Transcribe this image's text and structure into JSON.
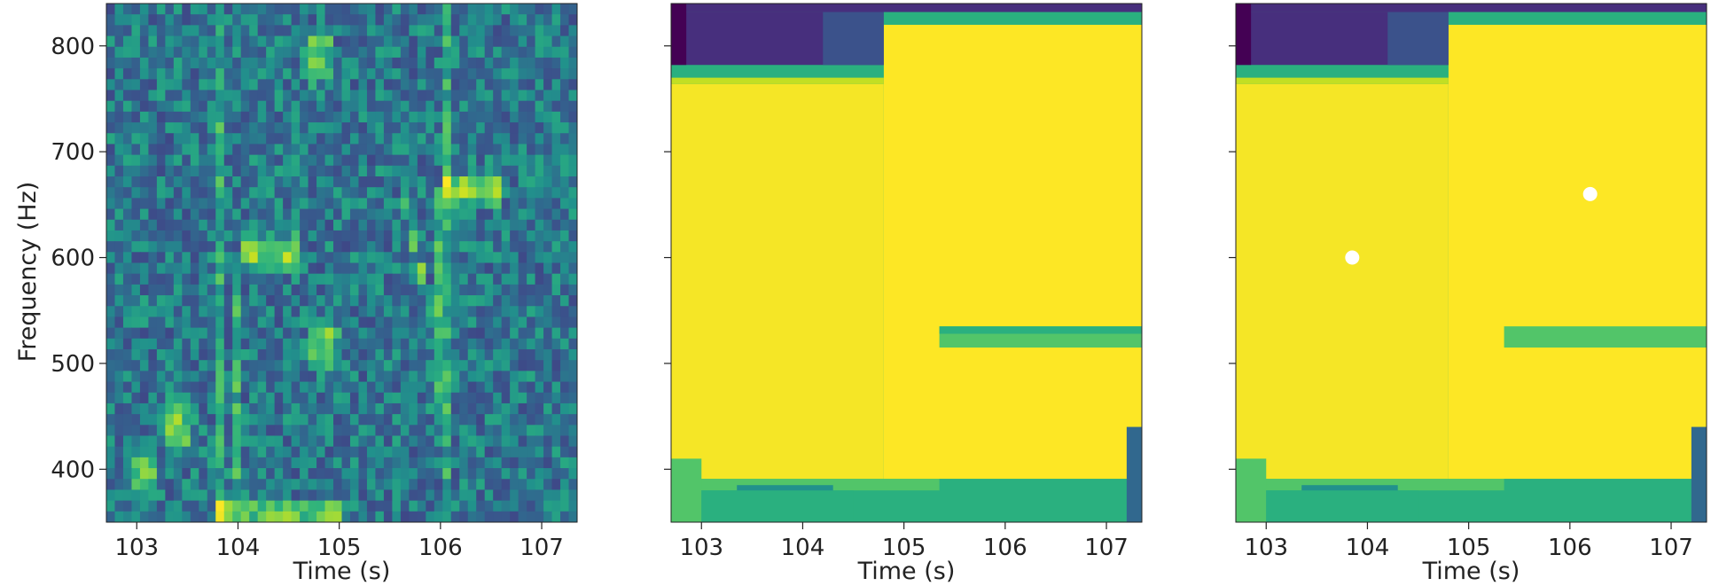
{
  "colormap": {
    "dark": "#440154",
    "purple": "#472f7d",
    "indigo": "#3b528b",
    "blue": "#31688e",
    "teal": "#21918c",
    "seagreen": "#2ab07f",
    "green": "#52c569",
    "lime": "#86d549",
    "yellowgreen": "#c2df23",
    "yellow": "#f5e626",
    "yellow_bright": "#fde725",
    "white": "#ffffff"
  },
  "chart_data": [
    {
      "type": "heatmap",
      "title": "",
      "xlabel": "Time (s)",
      "ylabel": "Frequency (Hz)",
      "xlim": [
        102.7,
        107.35
      ],
      "ylim": [
        350,
        840
      ],
      "xticks": [
        103,
        104,
        105,
        106,
        107
      ],
      "yticks": [
        400,
        500,
        600,
        700,
        800
      ],
      "description": "noisy spectrogram",
      "features": [
        {
          "label": "tone",
          "x": [
            104.0,
            104.6
          ],
          "y": 605
        },
        {
          "label": "tone",
          "x": [
            106.0,
            106.6
          ],
          "y": 665
        },
        {
          "label": "sweep",
          "x": [
            105.6,
            105.9
          ],
          "y": 670
        },
        {
          "label": "blob",
          "x": 104.85,
          "y": 520
        },
        {
          "label": "blob",
          "x": 104.8,
          "y": 790
        },
        {
          "label": "blob",
          "x": 103.4,
          "y": 440
        },
        {
          "label": "blob",
          "x": 103.05,
          "y": 395
        },
        {
          "label": "vertical_line",
          "x": 103.8
        },
        {
          "label": "vertical_line",
          "x": 106.05
        },
        {
          "label": "band",
          "x": [
            103.8,
            105.0
          ],
          "y": 360
        }
      ]
    },
    {
      "type": "heatmap",
      "title": "",
      "xlabel": "Time (s)",
      "xlim": [
        102.7,
        107.35
      ],
      "ylim": [
        350,
        840
      ],
      "xticks": [
        103,
        104,
        105,
        106,
        107
      ],
      "yticks": [
        400,
        500,
        600,
        700,
        800
      ],
      "regions": [
        {
          "x": [
            102.7,
            107.35
          ],
          "y": [
            350,
            840
          ],
          "color": "seagreen"
        },
        {
          "x": [
            102.7,
            105.35
          ],
          "y": [
            350,
            380
          ],
          "color": "seagreen"
        },
        {
          "x": [
            102.7,
            105.35
          ],
          "y": [
            380,
            391
          ],
          "color": "green"
        },
        {
          "x": [
            102.7,
            104.8
          ],
          "y": [
            391,
            764
          ],
          "color": "yellow"
        },
        {
          "x": [
            104.8,
            107.35
          ],
          "y": [
            391,
            820
          ],
          "color": "yellow_bright"
        },
        {
          "x": [
            102.7,
            104.8
          ],
          "y": [
            764,
            770
          ],
          "color": "yellowgreen"
        },
        {
          "x": [
            102.7,
            104.8
          ],
          "y": [
            770,
            782
          ],
          "color": "seagreen"
        },
        {
          "x": [
            102.7,
            104.8
          ],
          "y": [
            782,
            832
          ],
          "color": "purple"
        },
        {
          "x": [
            104.8,
            107.35
          ],
          "y": [
            820,
            832
          ],
          "color": "seagreen"
        },
        {
          "x": [
            102.7,
            107.35
          ],
          "y": [
            832,
            840
          ],
          "color": "purple"
        },
        {
          "x": [
            102.7,
            102.85
          ],
          "y": [
            782,
            840
          ],
          "color": "dark"
        },
        {
          "x": [
            104.2,
            104.8
          ],
          "y": [
            782,
            832
          ],
          "color": "indigo"
        },
        {
          "x": [
            105.35,
            107.35
          ],
          "y": [
            515,
            535
          ],
          "color": "green"
        },
        {
          "x": [
            105.35,
            107.35
          ],
          "y": [
            535,
            528
          ],
          "color": "seagreen"
        },
        {
          "x": [
            103.35,
            104.3
          ],
          "y": [
            385,
            340
          ],
          "color": "teal"
        },
        {
          "x": [
            102.7,
            103.0
          ],
          "y": [
            350,
            410
          ],
          "color": "green"
        },
        {
          "x": [
            103.0,
            104.5
          ],
          "y": [
            350,
            380
          ],
          "color": "seagreen"
        },
        {
          "x": [
            107.2,
            107.35
          ],
          "y": [
            350,
            440
          ],
          "color": "blue"
        }
      ]
    },
    {
      "type": "heatmap",
      "title": "",
      "xlabel": "Time (s)",
      "xlim": [
        102.7,
        107.35
      ],
      "ylim": [
        350,
        840
      ],
      "xticks": [
        103,
        104,
        105,
        106,
        107
      ],
      "yticks": [
        400,
        500,
        600,
        700,
        800
      ],
      "regions": [
        {
          "x": [
            102.7,
            107.35
          ],
          "y": [
            350,
            840
          ],
          "color": "seagreen"
        },
        {
          "x": [
            102.7,
            105.35
          ],
          "y": [
            350,
            380
          ],
          "color": "seagreen"
        },
        {
          "x": [
            102.7,
            105.35
          ],
          "y": [
            380,
            391
          ],
          "color": "green"
        },
        {
          "x": [
            102.7,
            104.8
          ],
          "y": [
            391,
            764
          ],
          "color": "yellow"
        },
        {
          "x": [
            104.8,
            107.35
          ],
          "y": [
            391,
            820
          ],
          "color": "yellow_bright"
        },
        {
          "x": [
            102.7,
            104.8
          ],
          "y": [
            764,
            770
          ],
          "color": "yellowgreen"
        },
        {
          "x": [
            102.7,
            104.8
          ],
          "y": [
            770,
            782
          ],
          "color": "seagreen"
        },
        {
          "x": [
            102.7,
            104.8
          ],
          "y": [
            782,
            832
          ],
          "color": "purple"
        },
        {
          "x": [
            104.8,
            107.35
          ],
          "y": [
            820,
            832
          ],
          "color": "seagreen"
        },
        {
          "x": [
            102.7,
            107.35
          ],
          "y": [
            832,
            840
          ],
          "color": "purple"
        },
        {
          "x": [
            102.7,
            102.85
          ],
          "y": [
            782,
            840
          ],
          "color": "dark"
        },
        {
          "x": [
            104.2,
            104.8
          ],
          "y": [
            782,
            832
          ],
          "color": "indigo"
        },
        {
          "x": [
            105.35,
            107.35
          ],
          "y": [
            515,
            535
          ],
          "color": "green"
        },
        {
          "x": [
            103.35,
            104.3
          ],
          "y": [
            385,
            340
          ],
          "color": "teal"
        },
        {
          "x": [
            102.7,
            103.0
          ],
          "y": [
            350,
            410
          ],
          "color": "green"
        },
        {
          "x": [
            103.0,
            104.5
          ],
          "y": [
            350,
            380
          ],
          "color": "seagreen"
        },
        {
          "x": [
            107.2,
            107.35
          ],
          "y": [
            350,
            440
          ],
          "color": "blue"
        }
      ],
      "points": [
        {
          "x": 103.85,
          "y": 600
        },
        {
          "x": 106.2,
          "y": 660
        }
      ]
    }
  ]
}
